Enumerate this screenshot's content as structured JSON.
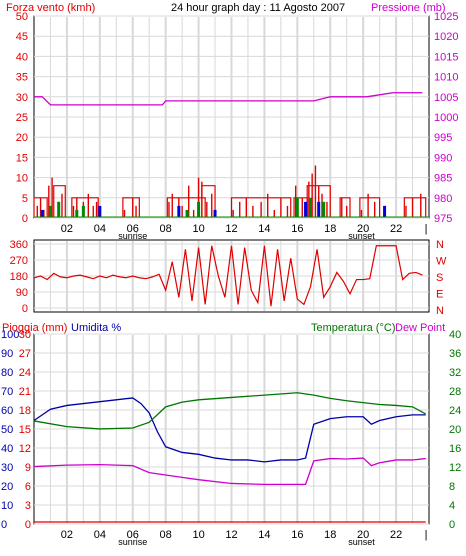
{
  "colors": {
    "wind": "#e00000",
    "pressure": "#cc00cc",
    "direction": "#e00000",
    "rain": "#e00000",
    "humidity": "#0000aa",
    "temperature": "#007700",
    "dewpoint": "#cc00cc",
    "gust_blue": "#0000dd",
    "gust_green": "#008800",
    "grid": "#d8d8d8",
    "frame": "#000000"
  },
  "chart_data": [
    {
      "type": "bar",
      "title": "24 hour graph day : 11 Agosto 2007",
      "ylabel": "Forza vento (kmh)",
      "y2label": "Pressione (mb)",
      "ylim": [
        0,
        50
      ],
      "yticks": [
        "0",
        "5",
        "10",
        "15",
        "20",
        "25",
        "30",
        "35",
        "40",
        "45",
        "50"
      ],
      "y2lim": [
        975,
        1025
      ],
      "y2ticks": [
        "975",
        "980",
        "985",
        "990",
        "995",
        "1000",
        "1005",
        "1010",
        "1015",
        "1020",
        "1025"
      ],
      "xticks": [
        "02",
        "04",
        "06",
        "08",
        "10",
        "12",
        "14",
        "16",
        "18",
        "20",
        "22"
      ],
      "x_markers": [
        "sunrise",
        "sunset"
      ],
      "x_marker_hours": [
        6.0,
        19.9
      ],
      "pressure": {
        "x": [
          0.0,
          0.5,
          1.0,
          4.0,
          6.0,
          7.0,
          7.8,
          8.0,
          10.0,
          13.0,
          15.0,
          16.0,
          17.0,
          18.0,
          19.0,
          20.0,
          20.2,
          21.8,
          22.0,
          22.6,
          23.0,
          23.6
        ],
        "y": [
          1005,
          1005,
          1003,
          1003,
          1003,
          1003,
          1003,
          1004,
          1004,
          1004,
          1004,
          1004,
          1004,
          1005,
          1005,
          1005,
          1005,
          1006,
          1006,
          1006,
          1006,
          1006
        ]
      },
      "wind_high_segments": [
        {
          "x": [
            0.0,
            0.8
          ],
          "y": [
            5,
            5
          ]
        },
        {
          "x": [
            1.2,
            1.9
          ],
          "y": [
            8,
            8
          ]
        },
        {
          "x": [
            2.3,
            3.9
          ],
          "y": [
            5,
            5
          ]
        },
        {
          "x": [
            5.4,
            6.4
          ],
          "y": [
            5,
            5
          ]
        },
        {
          "x": [
            8.1,
            10.4
          ],
          "y": [
            5,
            5
          ]
        },
        {
          "x": [
            10.2,
            11.0
          ],
          "y": [
            8,
            8
          ]
        },
        {
          "x": [
            12.0,
            15.6
          ],
          "y": [
            5,
            5
          ]
        },
        {
          "x": [
            15.8,
            16.6
          ],
          "y": [
            5,
            5
          ]
        },
        {
          "x": [
            16.6,
            18.0
          ],
          "y": [
            8,
            8
          ]
        },
        {
          "x": [
            18.6,
            19.2
          ],
          "y": [
            5,
            5
          ]
        },
        {
          "x": [
            19.8,
            21.0
          ],
          "y": [
            5,
            5
          ]
        },
        {
          "x": [
            22.5,
            23.8
          ],
          "y": [
            5,
            5
          ]
        }
      ],
      "wind_spikes": {
        "x": [
          0.2,
          0.4,
          0.6,
          0.9,
          1.1,
          1.5,
          1.7,
          2.4,
          2.6,
          3.0,
          3.3,
          3.6,
          3.8,
          5.5,
          6.0,
          6.2,
          8.2,
          8.4,
          8.8,
          9.0,
          9.4,
          9.7,
          10.0,
          10.2,
          10.5,
          10.8,
          12.1,
          12.5,
          12.9,
          13.3,
          13.8,
          14.2,
          14.6,
          15.0,
          15.4,
          15.9,
          16.3,
          16.7,
          16.9,
          17.1,
          17.3,
          17.5,
          17.8,
          18.7,
          19.0,
          19.9,
          20.3,
          20.7,
          22.6,
          23.0,
          23.5
        ],
        "y": [
          3,
          5,
          2,
          8,
          10,
          4,
          6,
          3,
          5,
          4,
          6,
          3,
          4,
          2,
          5,
          3,
          4,
          6,
          5,
          3,
          8,
          2,
          10,
          9,
          4,
          6,
          2,
          4,
          5,
          3,
          4,
          6,
          2,
          5,
          3,
          8,
          5,
          9,
          11,
          13,
          8,
          6,
          4,
          5,
          3,
          2,
          6,
          4,
          3,
          5,
          6
        ]
      },
      "wind_blue_bars": {
        "x": [
          0.5,
          4.0,
          8.8,
          11.0,
          16.5,
          17.3,
          21.3
        ],
        "y": [
          2,
          3,
          3,
          2,
          4,
          4,
          3
        ]
      },
      "wind_green_bars": {
        "x": [
          1.0,
          1.5,
          2.6,
          3.0,
          9.3,
          10.0,
          16.0,
          16.8,
          17.6
        ],
        "y": [
          3,
          4,
          2,
          3,
          2,
          4,
          5,
          5,
          4
        ]
      }
    },
    {
      "type": "line",
      "ylabels": [
        "N",
        "W",
        "S",
        "E",
        "N"
      ],
      "yticks": [
        "0",
        "90",
        "180",
        "270",
        "360"
      ],
      "ylim": [
        0,
        360
      ],
      "xticks": [
        "02",
        "04",
        "06",
        "08",
        "10",
        "12",
        "14",
        "16",
        "18",
        "20",
        "22"
      ],
      "x_marker_hours": [
        6.0,
        19.9
      ],
      "direction": {
        "x": [
          0.0,
          0.4,
          0.8,
          1.2,
          1.6,
          2.0,
          2.4,
          2.8,
          3.2,
          3.6,
          4.0,
          4.4,
          4.8,
          5.2,
          5.6,
          6.0,
          6.4,
          6.8,
          7.2,
          7.6,
          8.0,
          8.4,
          8.8,
          9.2,
          9.6,
          10.0,
          10.4,
          10.8,
          11.2,
          11.6,
          12.0,
          12.4,
          12.8,
          13.2,
          13.6,
          14.0,
          14.4,
          14.8,
          15.2,
          15.6,
          16.0,
          16.4,
          16.8,
          17.2,
          17.6,
          18.0,
          18.4,
          18.8,
          19.2,
          19.6,
          20.0,
          20.4,
          20.8,
          21.2,
          21.6,
          22.0,
          22.4,
          22.8,
          23.2,
          23.6
        ],
        "y": [
          170,
          180,
          160,
          195,
          175,
          170,
          180,
          185,
          175,
          165,
          180,
          170,
          185,
          175,
          170,
          180,
          170,
          165,
          175,
          190,
          100,
          260,
          60,
          330,
          40,
          340,
          20,
          350,
          180,
          60,
          350,
          20,
          340,
          100,
          30,
          350,
          10,
          330,
          40,
          280,
          50,
          20,
          120,
          330,
          60,
          120,
          200,
          150,
          80,
          160,
          160,
          165,
          350,
          350,
          350,
          350,
          160,
          195,
          200,
          185
        ]
      }
    },
    {
      "type": "line",
      "ylabel": "Pioggia (mm)",
      "ylabel2": "Umidita %",
      "y2label": "Temperatura (°C)",
      "y2label2": "Dew Point",
      "rain_ylim": [
        0,
        30
      ],
      "rain_yticks": [
        "0",
        "3",
        "6",
        "9",
        "12",
        "15",
        "18",
        "21",
        "24",
        "27",
        "30"
      ],
      "hum_ylim": [
        0,
        100
      ],
      "hum_yticks": [
        "0",
        "10",
        "20",
        "30",
        "40",
        "50",
        "60",
        "70",
        "80",
        "90",
        "100"
      ],
      "temp_ylim": [
        0,
        40
      ],
      "temp_yticks": [
        "0",
        "4",
        "8",
        "12",
        "16",
        "20",
        "24",
        "28",
        "32",
        "36",
        "40"
      ],
      "xticks": [
        "02",
        "04",
        "06",
        "08",
        "10",
        "12",
        "14",
        "16",
        "18",
        "20",
        "22"
      ],
      "x_markers": [
        "sunrise",
        "sunset"
      ],
      "x_marker_hours": [
        6.0,
        19.9
      ],
      "series": [
        {
          "name": "Umidita %",
          "unit": "%",
          "x": [
            0.0,
            1.0,
            2.0,
            3.0,
            4.0,
            5.0,
            6.0,
            6.5,
            7.0,
            7.5,
            8.0,
            9.0,
            10.0,
            11.0,
            12.0,
            13.0,
            14.0,
            15.0,
            16.0,
            16.5,
            17.0,
            18.0,
            19.0,
            20.0,
            20.5,
            21.0,
            22.0,
            23.0,
            23.8
          ],
          "y": [
            54,
            60,
            62,
            63,
            64,
            65,
            66,
            63,
            58,
            48,
            40,
            37,
            36,
            34,
            33,
            33,
            32,
            33,
            33,
            34,
            52,
            55,
            56,
            56,
            52,
            54,
            56,
            57,
            57
          ]
        },
        {
          "name": "Pioggia (mm)",
          "unit": "mm",
          "x": [
            0.0,
            23.8
          ],
          "y": [
            0,
            0
          ]
        },
        {
          "name": "Temperatura (°C)",
          "unit": "°C",
          "x": [
            0.0,
            2.0,
            4.0,
            6.0,
            7.0,
            8.0,
            9.0,
            10.0,
            12.0,
            14.0,
            16.0,
            17.0,
            18.0,
            19.0,
            20.0,
            21.0,
            22.0,
            23.0,
            23.8
          ],
          "y": [
            21.5,
            20.3,
            19.8,
            20.0,
            21.2,
            24.5,
            25.5,
            26.0,
            26.5,
            27.0,
            27.5,
            27.0,
            26.3,
            25.8,
            25.4,
            25.0,
            24.8,
            24.5,
            23.0
          ]
        },
        {
          "name": "Dew Point",
          "unit": "°C",
          "x": [
            0.0,
            2.0,
            4.0,
            6.0,
            7.0,
            8.0,
            9.0,
            10.0,
            12.0,
            14.0,
            16.0,
            16.5,
            17.0,
            18.0,
            19.0,
            20.0,
            20.5,
            21.0,
            22.0,
            23.0,
            23.8
          ],
          "y": [
            11.8,
            12.1,
            12.2,
            12.0,
            10.5,
            10.0,
            9.5,
            9.0,
            8.2,
            8.0,
            8.0,
            8.0,
            13.0,
            13.5,
            13.4,
            13.6,
            12.0,
            12.6,
            13.2,
            13.2,
            13.5
          ]
        }
      ]
    }
  ]
}
